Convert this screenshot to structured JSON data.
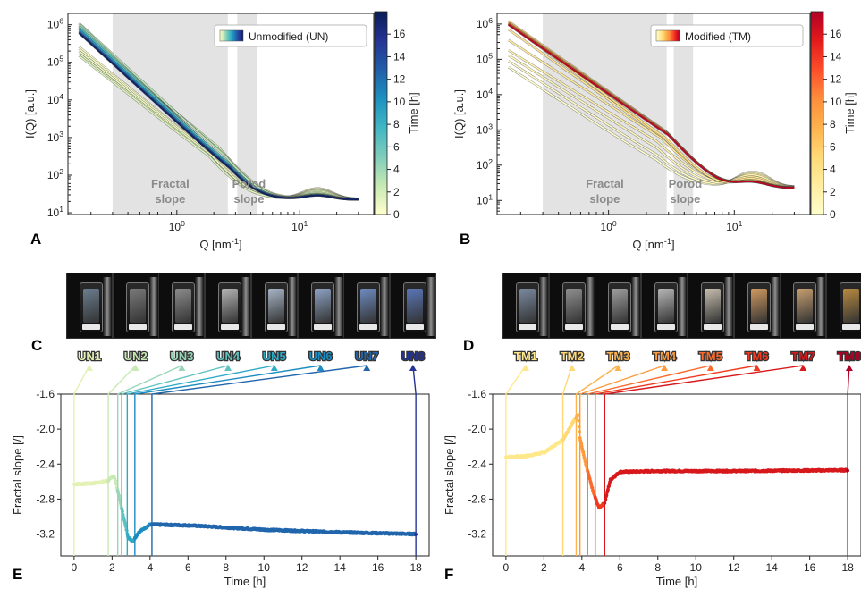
{
  "chart_data": [
    {
      "panel": "A",
      "type": "line",
      "xlabel": "Q [nm$^{-1}$]",
      "ylabel": "I(Q) [a.u.]",
      "xscale": "log",
      "yscale": "log",
      "xlim": [
        0.13,
        40
      ],
      "ylim": [
        9,
        2000000
      ],
      "xticks": [
        {
          "v": 1,
          "label": "10",
          "exp": "0"
        },
        {
          "v": 10,
          "label": "10",
          "exp": "1"
        }
      ],
      "yticks": [
        {
          "v": 10,
          "exp": "1"
        },
        {
          "v": 100,
          "exp": "2"
        },
        {
          "v": 1000,
          "exp": "3"
        },
        {
          "v": 10000,
          "exp": "4"
        },
        {
          "v": 100000,
          "exp": "5"
        },
        {
          "v": 1000000,
          "exp": "6"
        }
      ],
      "regions": [
        {
          "label1": "Fractal",
          "label2": "slope",
          "xmin": 0.3,
          "xmax": 2.6
        },
        {
          "label1": "Porod",
          "label2": "slope",
          "xmin": 3.1,
          "xmax": 4.5
        }
      ],
      "legend": {
        "label": "Unmodified (UN)",
        "placement": "top-right"
      },
      "colorbar": {
        "label": "Time [h]",
        "min": 0,
        "max": 18,
        "ticks": [
          0,
          2,
          4,
          6,
          8,
          10,
          12,
          14,
          16
        ],
        "colors": [
          "#ffffcc",
          "#c7e9b4",
          "#7fcdbb",
          "#41b6c4",
          "#1d91c0",
          "#225ea8",
          "#253494",
          "#081d58"
        ]
      },
      "curves": [
        {
          "t": 0.0,
          "i0": 260000,
          "slope": -2.65,
          "knee": 2.0,
          "porod": -3.8,
          "bump": 0.22
        },
        {
          "t": 0.4,
          "i0": 230000,
          "slope": -2.62,
          "knee": 1.9,
          "porod": -3.8,
          "bump": 0.2
        },
        {
          "t": 0.8,
          "i0": 200000,
          "slope": -2.6,
          "knee": 1.9,
          "porod": -3.8,
          "bump": 0.18
        },
        {
          "t": 1.2,
          "i0": 170000,
          "slope": -2.58,
          "knee": 1.8,
          "porod": -3.8,
          "bump": 0.17
        },
        {
          "t": 1.6,
          "i0": 150000,
          "slope": -2.55,
          "knee": 1.8,
          "porod": -3.8,
          "bump": 0.15
        },
        {
          "t": 2.2,
          "i0": 700000,
          "slope": -2.75,
          "knee": 2.2,
          "porod": -3.9,
          "bump": 0.12
        },
        {
          "t": 2.6,
          "i0": 900000,
          "slope": -2.9,
          "knee": 2.4,
          "porod": -4.0,
          "bump": 0.1
        },
        {
          "t": 3.0,
          "i0": 1100000,
          "slope": -3.0,
          "knee": 2.5,
          "porod": -4.0,
          "bump": 0.09
        },
        {
          "t": 3.5,
          "i0": 1050000,
          "slope": -3.1,
          "knee": 2.6,
          "porod": -4.0,
          "bump": 0.08
        },
        {
          "t": 4.5,
          "i0": 950000,
          "slope": -3.05,
          "knee": 2.6,
          "porod": -4.0,
          "bump": 0.08
        },
        {
          "t": 7.0,
          "i0": 850000,
          "slope": -3.0,
          "knee": 2.6,
          "porod": -4.0,
          "bump": 0.08
        },
        {
          "t": 10.0,
          "i0": 750000,
          "slope": -3.0,
          "knee": 2.7,
          "porod": -4.0,
          "bump": 0.07
        },
        {
          "t": 14.0,
          "i0": 650000,
          "slope": -2.98,
          "knee": 2.7,
          "porod": -4.0,
          "bump": 0.07
        },
        {
          "t": 17.5,
          "i0": 600000,
          "slope": -2.98,
          "knee": 2.7,
          "porod": -4.0,
          "bump": 0.07
        }
      ],
      "panel_label": "A"
    },
    {
      "panel": "B",
      "type": "line",
      "xlabel": "Q [nm$^{-1}$]",
      "ylabel": "I(Q) [a.u.]",
      "xscale": "log",
      "yscale": "log",
      "xlim": [
        0.13,
        40
      ],
      "ylim": [
        4,
        2000000
      ],
      "xticks": [
        {
          "v": 1,
          "label": "10",
          "exp": "0"
        },
        {
          "v": 10,
          "label": "10",
          "exp": "1"
        }
      ],
      "yticks": [
        {
          "v": 10,
          "exp": "1"
        },
        {
          "v": 100,
          "exp": "2"
        },
        {
          "v": 1000,
          "exp": "3"
        },
        {
          "v": 10000,
          "exp": "4"
        },
        {
          "v": 100000,
          "exp": "5"
        },
        {
          "v": 1000000,
          "exp": "6"
        }
      ],
      "regions": [
        {
          "label1": "Fractal",
          "label2": "slope",
          "xmin": 0.3,
          "xmax": 2.9
        },
        {
          "label1": "Porod",
          "label2": "slope",
          "xmin": 3.3,
          "xmax": 4.7
        }
      ],
      "legend": {
        "label": "Modified (TM)",
        "placement": "top-right"
      },
      "colorbar": {
        "label": "Time [h]",
        "min": 0,
        "max": 18,
        "ticks": [
          0,
          2,
          4,
          6,
          8,
          10,
          12,
          14,
          16
        ],
        "colors": [
          "#ffffcc",
          "#ffeda0",
          "#fed976",
          "#feb24c",
          "#fd8d3c",
          "#fc4e2a",
          "#e31a1c",
          "#b10026"
        ]
      },
      "curves": [
        {
          "t": 0.0,
          "i0": 60000,
          "slope": -2.3,
          "knee": 2.4,
          "porod": -3.4,
          "bump": 0.4
        },
        {
          "t": 0.6,
          "i0": 90000,
          "slope": -2.3,
          "knee": 2.4,
          "porod": -3.4,
          "bump": 0.36
        },
        {
          "t": 1.2,
          "i0": 130000,
          "slope": -2.25,
          "knee": 2.4,
          "porod": -3.4,
          "bump": 0.32
        },
        {
          "t": 2.0,
          "i0": 180000,
          "slope": -2.2,
          "knee": 2.4,
          "porod": -3.4,
          "bump": 0.28
        },
        {
          "t": 3.0,
          "i0": 350000,
          "slope": -2.3,
          "knee": 2.6,
          "porod": -3.6,
          "bump": 0.22
        },
        {
          "t": 3.6,
          "i0": 700000,
          "slope": -2.5,
          "knee": 2.8,
          "porod": -3.8,
          "bump": 0.18
        },
        {
          "t": 4.2,
          "i0": 1000000,
          "slope": -2.6,
          "knee": 2.9,
          "porod": -3.9,
          "bump": 0.14
        },
        {
          "t": 5.0,
          "i0": 1200000,
          "slope": -2.5,
          "knee": 2.9,
          "porod": -3.9,
          "bump": 0.12
        },
        {
          "t": 7.0,
          "i0": 1100000,
          "slope": -2.48,
          "knee": 2.9,
          "porod": -3.9,
          "bump": 0.11
        },
        {
          "t": 10.0,
          "i0": 1050000,
          "slope": -2.48,
          "knee": 3.0,
          "porod": -3.9,
          "bump": 0.1
        },
        {
          "t": 14.0,
          "i0": 1000000,
          "slope": -2.47,
          "knee": 3.0,
          "porod": -3.9,
          "bump": 0.1
        },
        {
          "t": 17.5,
          "i0": 950000,
          "slope": -2.47,
          "knee": 3.0,
          "porod": -3.9,
          "bump": 0.1
        }
      ],
      "panel_label": "B"
    },
    {
      "panel": "E",
      "type": "scatter",
      "xlabel": "Time [h]",
      "ylabel": "Fractal slope [/]",
      "xlim": [
        -0.7,
        18.7
      ],
      "ylim": [
        -3.45,
        -1.6
      ],
      "xticks": [
        0,
        2,
        4,
        6,
        8,
        10,
        12,
        14,
        16,
        18
      ],
      "yticks": [
        -1.6,
        -2.0,
        -2.4,
        -2.8,
        -3.2
      ],
      "ytick_labels": [
        "-1.6",
        "-2.0",
        "-2.4",
        "-2.8",
        "-3.2"
      ],
      "series_keypoints": [
        {
          "x": 0.0,
          "y": -2.63
        },
        {
          "x": 1.0,
          "y": -2.62
        },
        {
          "x": 1.8,
          "y": -2.59
        },
        {
          "x": 2.1,
          "y": -2.53
        },
        {
          "x": 2.35,
          "y": -2.75
        },
        {
          "x": 2.6,
          "y": -3.0
        },
        {
          "x": 2.85,
          "y": -3.24
        },
        {
          "x": 3.1,
          "y": -3.28
        },
        {
          "x": 3.4,
          "y": -3.18
        },
        {
          "x": 4.0,
          "y": -3.09
        },
        {
          "x": 6.0,
          "y": -3.1
        },
        {
          "x": 10.0,
          "y": -3.15
        },
        {
          "x": 14.0,
          "y": -3.18
        },
        {
          "x": 18.0,
          "y": -3.2
        }
      ],
      "samples": [
        {
          "name": "UN1",
          "t": 0.0,
          "color": "#e3f2b4"
        },
        {
          "name": "UN2",
          "t": 1.8,
          "color": "#c7e9b4"
        },
        {
          "name": "UN3",
          "t": 2.3,
          "color": "#97d6b9"
        },
        {
          "name": "UN4",
          "t": 2.5,
          "color": "#5fc2bf"
        },
        {
          "name": "UN5",
          "t": 2.8,
          "color": "#2ea9c6"
        },
        {
          "name": "UN6",
          "t": 3.2,
          "color": "#1d8cc0"
        },
        {
          "name": "UN7",
          "t": 4.1,
          "color": "#2166ac"
        },
        {
          "name": "UN8",
          "t": 18.0,
          "color": "#253494"
        }
      ],
      "photo_tint": [
        "#6b7d8f",
        "#7a7a7a",
        "#8c8c8c",
        "#b5b5b5",
        "#a8b6c8",
        "#8da3c4",
        "#6e8bc0",
        "#5a78b8"
      ],
      "panel_label_photos": "C",
      "panel_label": "E"
    },
    {
      "panel": "F",
      "type": "scatter",
      "xlabel": "Time [h]",
      "ylabel": "Fractal slope [/]",
      "xlim": [
        -0.7,
        18.7
      ],
      "ylim": [
        -3.45,
        -1.6
      ],
      "xticks": [
        0,
        2,
        4,
        6,
        8,
        10,
        12,
        14,
        16,
        18
      ],
      "yticks": [
        -1.6,
        -2.0,
        -2.4,
        -2.8,
        -3.2
      ],
      "ytick_labels": [
        "-1.6",
        "-2.0",
        "-2.4",
        "-2.8",
        "-3.2"
      ],
      "series_keypoints": [
        {
          "x": 0.0,
          "y": -2.32
        },
        {
          "x": 1.0,
          "y": -2.31
        },
        {
          "x": 2.0,
          "y": -2.27
        },
        {
          "x": 3.0,
          "y": -2.12
        },
        {
          "x": 3.5,
          "y": -1.93
        },
        {
          "x": 3.8,
          "y": -1.83
        },
        {
          "x": 3.9,
          "y": -2.1
        },
        {
          "x": 4.2,
          "y": -2.4
        },
        {
          "x": 4.6,
          "y": -2.72
        },
        {
          "x": 4.9,
          "y": -2.9
        },
        {
          "x": 5.2,
          "y": -2.84
        },
        {
          "x": 5.5,
          "y": -2.58
        },
        {
          "x": 6.0,
          "y": -2.49
        },
        {
          "x": 8.0,
          "y": -2.48
        },
        {
          "x": 12.0,
          "y": -2.48
        },
        {
          "x": 18.0,
          "y": -2.47
        }
      ],
      "samples": [
        {
          "name": "TM1",
          "t": 0.0,
          "color": "#ffe88a"
        },
        {
          "name": "TM2",
          "t": 3.0,
          "color": "#fed976"
        },
        {
          "name": "TM3",
          "t": 3.7,
          "color": "#feb24c"
        },
        {
          "name": "TM4",
          "t": 3.9,
          "color": "#fd9a3c"
        },
        {
          "name": "TM5",
          "t": 4.3,
          "color": "#fc6a2a"
        },
        {
          "name": "TM6",
          "t": 4.7,
          "color": "#f03b20"
        },
        {
          "name": "TM7",
          "t": 5.2,
          "color": "#d7191c"
        },
        {
          "name": "TM8",
          "t": 18.0,
          "color": "#b10026"
        }
      ],
      "photo_tint": [
        "#7a8aa0",
        "#909090",
        "#a0a0a0",
        "#b8b8b8",
        "#c8c0b0",
        "#d09a60",
        "#c8a070",
        "#b88a40"
      ],
      "panel_label_photos": "D",
      "panel_label": "F"
    }
  ]
}
